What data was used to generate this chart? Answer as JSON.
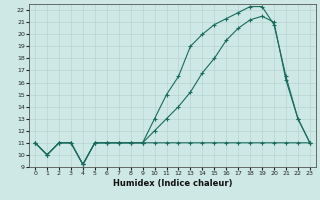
{
  "xlabel": "Humidex (Indice chaleur)",
  "ylabel": "",
  "xlim": [
    -0.5,
    23.5
  ],
  "ylim": [
    9,
    22.5
  ],
  "yticks": [
    9,
    10,
    11,
    12,
    13,
    14,
    15,
    16,
    17,
    18,
    19,
    20,
    21,
    22
  ],
  "xticks": [
    0,
    1,
    2,
    3,
    4,
    5,
    6,
    7,
    8,
    9,
    10,
    11,
    12,
    13,
    14,
    15,
    16,
    17,
    18,
    19,
    20,
    21,
    22,
    23
  ],
  "bg_color": "#cde8e5",
  "line_color": "#1a6b5e",
  "grid_color": "#b8d4d0",
  "series": [
    {
      "x": [
        0,
        1,
        2,
        3,
        4,
        5,
        6,
        7,
        8,
        9,
        10,
        11,
        12,
        13,
        14,
        15,
        16,
        17,
        18,
        19,
        20,
        21,
        22,
        23
      ],
      "y": [
        11,
        10,
        11,
        11,
        9.2,
        11,
        11,
        11,
        11,
        11,
        11,
        11,
        11,
        11,
        11,
        11,
        11,
        11,
        11,
        11,
        11,
        11,
        11,
        11
      ]
    },
    {
      "x": [
        0,
        1,
        2,
        3,
        4,
        5,
        6,
        7,
        8,
        9,
        10,
        11,
        12,
        13,
        14,
        15,
        16,
        17,
        18,
        19,
        20,
        21,
        22,
        23
      ],
      "y": [
        11,
        10,
        11,
        11,
        9.2,
        11,
        11,
        11,
        11,
        11,
        12,
        13,
        14,
        15.2,
        16.8,
        18,
        19.5,
        20.5,
        21.2,
        21.5,
        21.0,
        16.2,
        13,
        11
      ]
    },
    {
      "x": [
        0,
        1,
        2,
        3,
        4,
        5,
        6,
        7,
        8,
        9,
        10,
        11,
        12,
        13,
        14,
        15,
        16,
        17,
        18,
        19,
        20,
        21,
        22,
        23
      ],
      "y": [
        11,
        10,
        11,
        11,
        9.2,
        11,
        11,
        11,
        11,
        11,
        13,
        15,
        16.5,
        19,
        20,
        20.8,
        21.3,
        21.8,
        22.3,
        22.3,
        20.8,
        16.5,
        13.0,
        11
      ]
    }
  ]
}
